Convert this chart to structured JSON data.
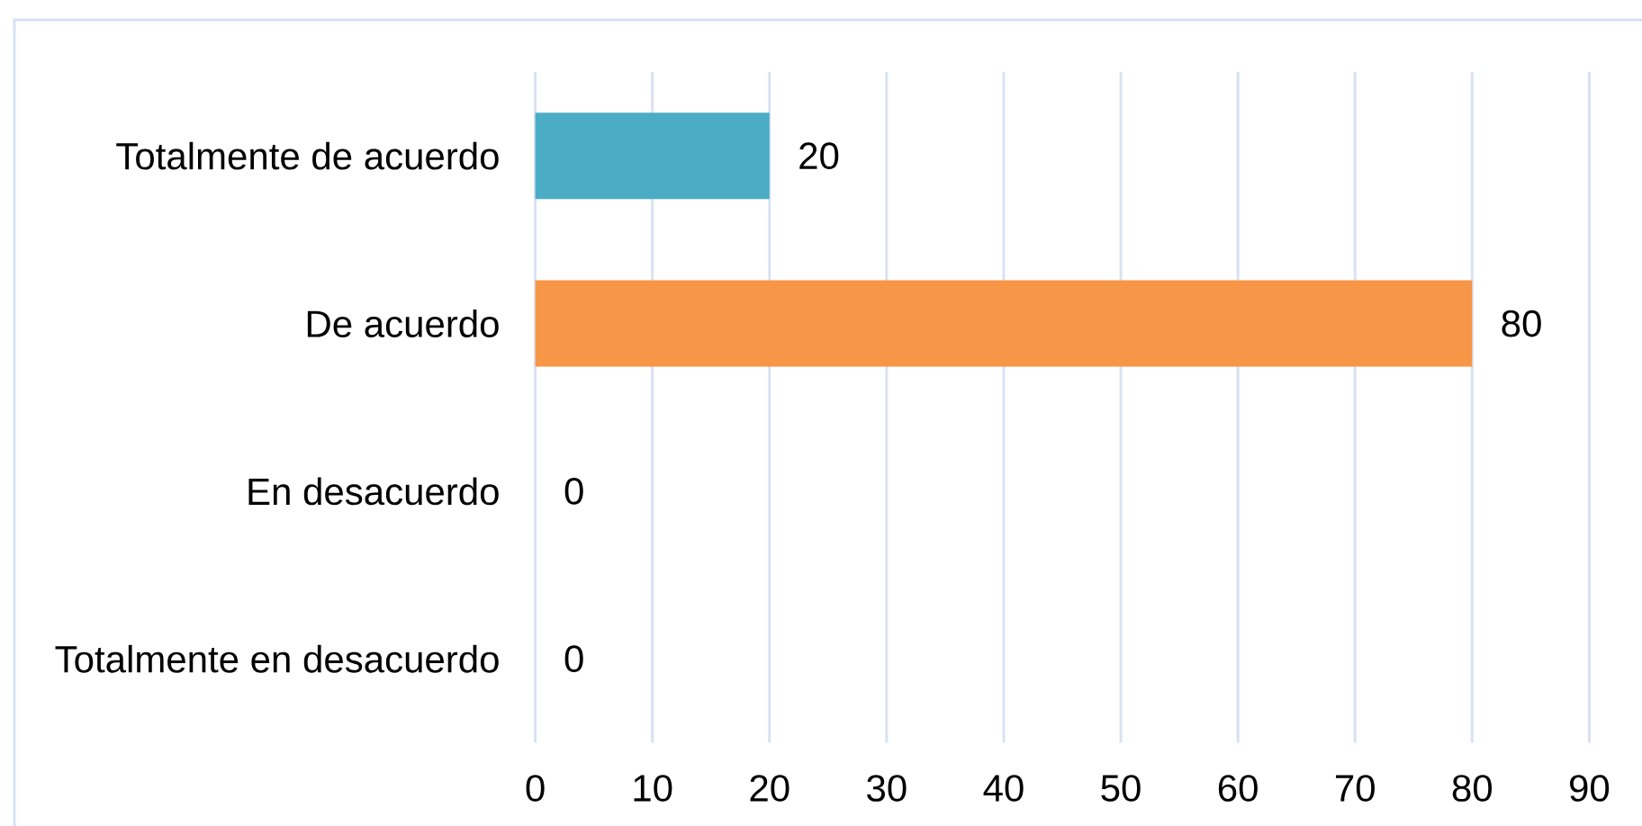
{
  "chart_data": {
    "type": "bar",
    "orientation": "horizontal",
    "categories": [
      "Totalmente de acuerdo",
      "De acuerdo",
      "En desacuerdo",
      "Totalmente en desacuerdo"
    ],
    "values": [
      20,
      80,
      0,
      0
    ],
    "colors": [
      "#4bacc6",
      "#f79646",
      "#4bacc6",
      "#4bacc6"
    ],
    "xlim": [
      0,
      90
    ],
    "xticks": [
      0,
      10,
      20,
      30,
      40,
      50,
      60,
      70,
      80,
      90
    ],
    "grid": "x",
    "data_labels": true
  }
}
